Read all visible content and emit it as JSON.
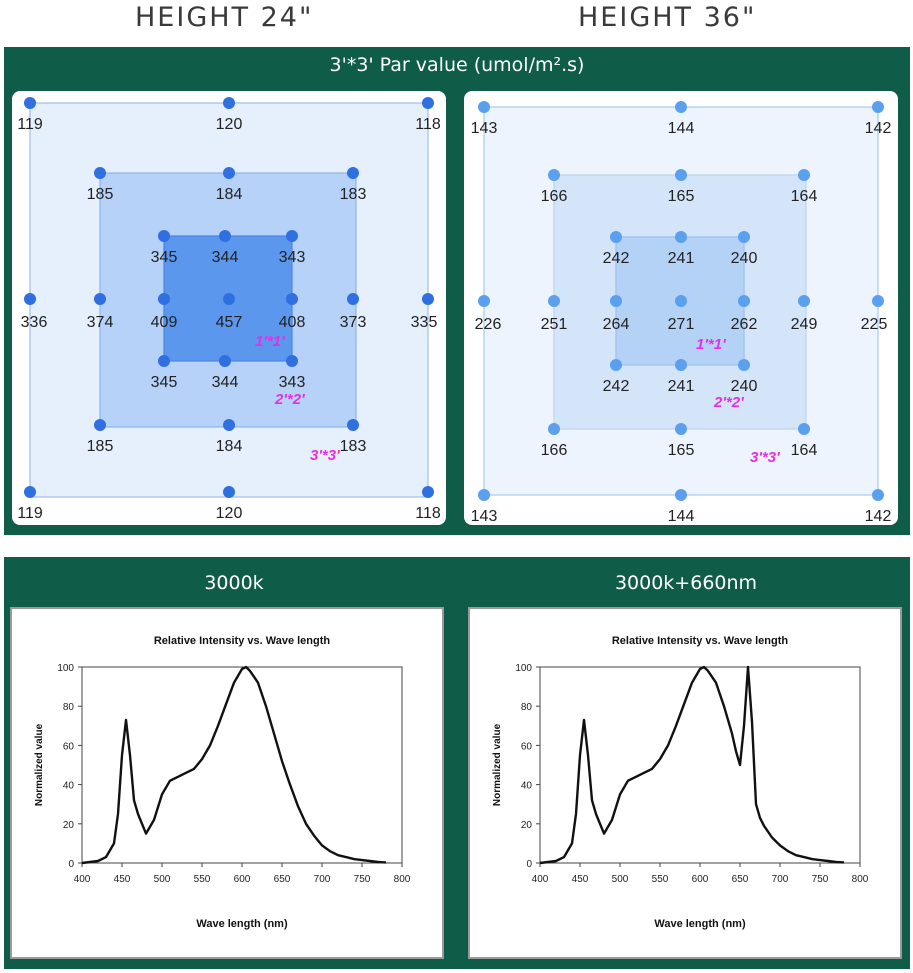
{
  "headings": {
    "left": "HEIGHT  24\"",
    "right": "HEIGHT  36\""
  },
  "par_title": "3'*3' Par value (umol/m².s)",
  "square_labels": [
    "1'*1'",
    "2'*2'",
    "3'*3'"
  ],
  "colors": {
    "brand_green": "#0f5c49",
    "label_magenta": "#e62ee6",
    "dot_24": "#2f6fe0",
    "dot_36": "#5aa0ee"
  },
  "par_maps": [
    {
      "height": "24\"",
      "points": [
        {
          "row": "outer-top",
          "values": [
            "119",
            "120",
            "118"
          ]
        },
        {
          "row": "mid-top",
          "values": [
            "185",
            "184",
            "183"
          ]
        },
        {
          "row": "inner-top",
          "values": [
            "345",
            "344",
            "343"
          ]
        },
        {
          "row": "center",
          "values": [
            "336",
            "374",
            "409",
            "457",
            "408",
            "373",
            "335"
          ]
        },
        {
          "row": "inner-bottom",
          "values": [
            "345",
            "344",
            "343"
          ]
        },
        {
          "row": "mid-bottom",
          "values": [
            "185",
            "184",
            "183"
          ]
        },
        {
          "row": "outer-bottom",
          "values": [
            "119",
            "120",
            "118"
          ]
        }
      ]
    },
    {
      "height": "36\"",
      "points": [
        {
          "row": "outer-top",
          "values": [
            "143",
            "144",
            "142"
          ]
        },
        {
          "row": "mid-top",
          "values": [
            "166",
            "165",
            "164"
          ]
        },
        {
          "row": "inner-top",
          "values": [
            "242",
            "241",
            "240"
          ]
        },
        {
          "row": "center",
          "values": [
            "226",
            "251",
            "264",
            "271",
            "262",
            "249",
            "225"
          ]
        },
        {
          "row": "inner-bottom",
          "values": [
            "242",
            "241",
            "240"
          ]
        },
        {
          "row": "mid-bottom",
          "values": [
            "166",
            "165",
            "164"
          ]
        },
        {
          "row": "outer-bottom",
          "values": [
            "143",
            "144",
            "142"
          ]
        }
      ]
    }
  ],
  "spectrum_titles": [
    "3000k",
    "3000k+660nm"
  ],
  "chart_data": [
    {
      "type": "line",
      "title": "Relative Intensity vs. Wave length",
      "xlabel": "Wave length (nm)",
      "ylabel": "Normalized value",
      "xlim": [
        400,
        800
      ],
      "ylim": [
        0,
        100
      ],
      "xticks": [
        400,
        450,
        500,
        550,
        600,
        650,
        700,
        750,
        800
      ],
      "yticks": [
        0,
        20,
        40,
        60,
        80,
        100
      ],
      "grid": false,
      "series": [
        {
          "x": [
            400,
            420,
            430,
            440,
            445,
            450,
            455,
            460,
            465,
            470,
            480,
            490,
            500,
            510,
            520,
            530,
            540,
            550,
            560,
            570,
            580,
            590,
            600,
            605,
            610,
            620,
            630,
            640,
            650,
            660,
            670,
            680,
            690,
            700,
            710,
            720,
            730,
            740,
            750,
            760,
            770,
            780
          ],
          "y": [
            0,
            1,
            3,
            10,
            25,
            55,
            73,
            55,
            32,
            25,
            15,
            22,
            35,
            42,
            44,
            46,
            48,
            53,
            60,
            70,
            81,
            92,
            99,
            100,
            98,
            92,
            80,
            66,
            52,
            40,
            29,
            20,
            14,
            9,
            6,
            4,
            3,
            2,
            1.5,
            1,
            0.5,
            0.3
          ]
        }
      ]
    },
    {
      "type": "line",
      "title": "Relative Intensity vs. Wave length",
      "xlabel": "Wave length (nm)",
      "ylabel": "Normalized value",
      "xlim": [
        400,
        800
      ],
      "ylim": [
        0,
        100
      ],
      "xticks": [
        400,
        450,
        500,
        550,
        600,
        650,
        700,
        750,
        800
      ],
      "yticks": [
        0,
        20,
        40,
        60,
        80,
        100
      ],
      "grid": false,
      "series": [
        {
          "x": [
            400,
            420,
            430,
            440,
            445,
            450,
            455,
            460,
            465,
            470,
            480,
            490,
            500,
            510,
            520,
            530,
            540,
            550,
            560,
            570,
            580,
            590,
            600,
            605,
            610,
            620,
            630,
            640,
            645,
            650,
            655,
            660,
            665,
            670,
            675,
            680,
            690,
            700,
            710,
            720,
            730,
            740,
            750,
            760,
            770,
            780
          ],
          "y": [
            0,
            1,
            3,
            10,
            25,
            55,
            73,
            55,
            32,
            25,
            15,
            22,
            35,
            42,
            44,
            46,
            48,
            53,
            60,
            70,
            81,
            92,
            99,
            100,
            98,
            92,
            80,
            66,
            57,
            50,
            70,
            100,
            72,
            30,
            23,
            19,
            13,
            9,
            6,
            4,
            3,
            2,
            1.5,
            1,
            0.5,
            0.3
          ]
        }
      ]
    }
  ]
}
